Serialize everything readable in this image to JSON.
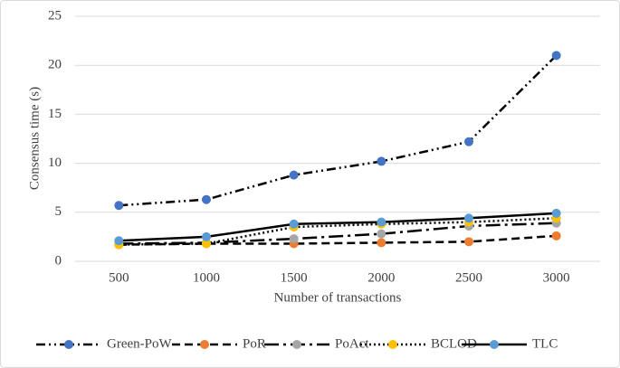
{
  "chart_data": {
    "type": "line",
    "x_label": "Number of transactions",
    "y_label": "Consensus time (s)",
    "categories": [
      "500",
      "1000",
      "1500",
      "2000",
      "2500",
      "3000"
    ],
    "ylim": [
      0,
      25
    ],
    "yticks": [
      0,
      5,
      10,
      15,
      20,
      25
    ],
    "grid": true,
    "legend": "bottom",
    "series": [
      {
        "name": "Green-PoW",
        "color": "#4472c4",
        "line_style": "dash-dot",
        "values": [
          5.7,
          6.3,
          8.8,
          10.2,
          12.2,
          21.0
        ]
      },
      {
        "name": "PoR",
        "color": "#ed7d31",
        "line_style": "dash",
        "values": [
          1.7,
          1.8,
          1.8,
          1.9,
          2.0,
          2.6
        ]
      },
      {
        "name": "PoAct",
        "color": "#a5a5a5",
        "line_style": "long-dash-dot",
        "values": [
          1.8,
          1.9,
          2.3,
          2.8,
          3.6,
          3.9
        ]
      },
      {
        "name": "BCLOD",
        "color": "#ffc000",
        "line_style": "dot",
        "values": [
          1.7,
          1.8,
          3.5,
          3.8,
          4.0,
          4.4
        ]
      },
      {
        "name": "TLC",
        "color": "#5b9bd5",
        "line_style": "solid",
        "values": [
          2.1,
          2.5,
          3.8,
          4.0,
          4.4,
          4.9
        ]
      }
    ]
  }
}
